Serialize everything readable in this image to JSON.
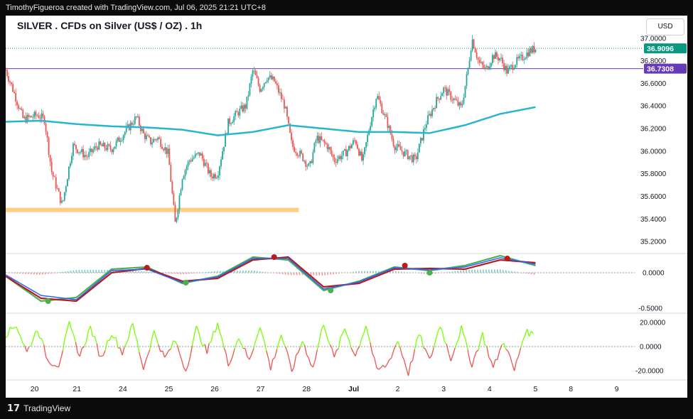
{
  "header": {
    "text": "TimothyFigueroa created with TradingView.com, Jul 06, 2025 21:21 UTC+8"
  },
  "footer": {
    "logo": "17",
    "brand": "TradingView"
  },
  "chart_title": "SILVER . CFDs on Silver (US$ / OZ) . 1h",
  "currency_button": "USD",
  "chart_data": [
    {
      "type": "candlestick",
      "title": "SILVER . CFDs on Silver (US$ / OZ) . 1h",
      "ylim": [
        35.1,
        37.2
      ],
      "y_ticks": [
        "37.0000",
        "36.8000",
        "36.6000",
        "36.4000",
        "36.2000",
        "36.0000",
        "35.8000",
        "35.6000",
        "35.4000",
        "35.2000"
      ],
      "y_tick_values": [
        37.0,
        36.8,
        36.6,
        36.4,
        36.2,
        36.0,
        35.8,
        35.6,
        35.4,
        35.2
      ],
      "x_ticks": [
        "20",
        "21",
        "24",
        "25",
        "26",
        "27",
        "28",
        "Jul",
        "2",
        "3",
        "4",
        "5",
        "8",
        "9"
      ],
      "price_label": "36.9096",
      "price_value": 36.9096,
      "horizontal_level_label": "36.7308",
      "horizontal_level_value": 36.7308,
      "support_zone": {
        "value": 35.48,
        "from_day": 0,
        "to_day": 8.3
      },
      "colors": {
        "up": "#26a69a",
        "down": "#ef5350",
        "ma": "#26b6d4",
        "price_tag": "#089981",
        "level_tag": "#673ab7",
        "support": "#ffcc80"
      },
      "ohlc_keypoints": [
        [
          0,
          36.72
        ],
        [
          0.2,
          36.55
        ],
        [
          0.5,
          36.28
        ],
        [
          0.9,
          36.32
        ],
        [
          1.1,
          36.28
        ],
        [
          1.3,
          35.82
        ],
        [
          1.6,
          35.52
        ],
        [
          1.9,
          36.05
        ],
        [
          2.3,
          35.95
        ],
        [
          2.6,
          36.05
        ],
        [
          3.0,
          36.02
        ],
        [
          3.4,
          36.18
        ],
        [
          3.7,
          36.3
        ],
        [
          3.9,
          36.15
        ],
        [
          4.1,
          36.08
        ],
        [
          4.3,
          36.12
        ],
        [
          4.6,
          35.98
        ],
        [
          4.8,
          35.35
        ],
        [
          5.0,
          35.78
        ],
        [
          5.2,
          35.92
        ],
        [
          5.5,
          35.98
        ],
        [
          5.8,
          35.78
        ],
        [
          6.0,
          35.8
        ],
        [
          6.3,
          36.25
        ],
        [
          6.6,
          36.35
        ],
        [
          6.8,
          36.4
        ],
        [
          7.0,
          36.72
        ],
        [
          7.2,
          36.55
        ],
        [
          7.4,
          36.66
        ],
        [
          7.6,
          36.62
        ],
        [
          7.9,
          36.4
        ],
        [
          8.1,
          36.05
        ],
        [
          8.4,
          35.95
        ],
        [
          8.6,
          35.85
        ],
        [
          8.8,
          36.12
        ],
        [
          9.1,
          36.05
        ],
        [
          9.3,
          35.92
        ],
        [
          9.6,
          35.98
        ],
        [
          9.9,
          36.1
        ],
        [
          10.1,
          35.9
        ],
        [
          10.3,
          36.22
        ],
        [
          10.5,
          36.5
        ],
        [
          10.8,
          36.25
        ],
        [
          11.0,
          36.05
        ],
        [
          11.3,
          35.98
        ],
        [
          11.6,
          35.92
        ],
        [
          11.9,
          36.25
        ],
        [
          12.2,
          36.45
        ],
        [
          12.4,
          36.55
        ],
        [
          12.7,
          36.45
        ],
        [
          12.9,
          36.38
        ],
        [
          13.1,
          36.75
        ],
        [
          13.2,
          37.0
        ],
        [
          13.4,
          36.78
        ],
        [
          13.6,
          36.72
        ],
        [
          13.8,
          36.85
        ],
        [
          14.0,
          36.82
        ],
        [
          14.2,
          36.7
        ],
        [
          14.4,
          36.78
        ],
        [
          14.6,
          36.82
        ],
        [
          14.8,
          36.88
        ],
        [
          15.0,
          36.91
        ]
      ],
      "ma_keypoints": [
        [
          0,
          36.26
        ],
        [
          1,
          36.27
        ],
        [
          2,
          36.24
        ],
        [
          3,
          36.22
        ],
        [
          4,
          36.21
        ],
        [
          5,
          36.19
        ],
        [
          6,
          36.14
        ],
        [
          7,
          36.17
        ],
        [
          8,
          36.23
        ],
        [
          9,
          36.2
        ],
        [
          10,
          36.17
        ],
        [
          11,
          36.17
        ],
        [
          12,
          36.16
        ],
        [
          13,
          36.23
        ],
        [
          14,
          36.33
        ],
        [
          15,
          36.39
        ]
      ]
    },
    {
      "type": "line",
      "name": "macd-panel",
      "ylim": [
        -0.56,
        0.26
      ],
      "y_ticks": [
        "0.0000",
        "-0.5000"
      ],
      "y_tick_values": [
        0.0,
        -0.5
      ],
      "series": [
        {
          "name": "fast",
          "color": "#4caf50",
          "keypoints": [
            [
              0,
              -0.05
            ],
            [
              1,
              -0.4
            ],
            [
              2,
              -0.35
            ],
            [
              3,
              0.05
            ],
            [
              4,
              0.08
            ],
            [
              5,
              -0.15
            ],
            [
              6,
              -0.05
            ],
            [
              7,
              0.22
            ],
            [
              8,
              0.18
            ],
            [
              9,
              -0.25
            ],
            [
              10,
              -0.12
            ],
            [
              11,
              0.08
            ],
            [
              12,
              0.03
            ],
            [
              13,
              0.1
            ],
            [
              14,
              0.24
            ],
            [
              15,
              0.1
            ]
          ]
        },
        {
          "name": "slow",
          "color": "#b71c1c",
          "keypoints": [
            [
              0,
              -0.05
            ],
            [
              1,
              -0.36
            ],
            [
              2,
              -0.4
            ],
            [
              3,
              0.0
            ],
            [
              4,
              0.06
            ],
            [
              5,
              -0.12
            ],
            [
              6,
              -0.08
            ],
            [
              7,
              0.18
            ],
            [
              8,
              0.22
            ],
            [
              9,
              -0.2
            ],
            [
              10,
              -0.15
            ],
            [
              11,
              0.05
            ],
            [
              12,
              0.06
            ],
            [
              13,
              0.05
            ],
            [
              14,
              0.18
            ],
            [
              15,
              0.14
            ]
          ]
        },
        {
          "name": "signal",
          "color": "#2962ff",
          "keypoints": [
            [
              0,
              -0.03
            ],
            [
              1,
              -0.32
            ],
            [
              2,
              -0.38
            ],
            [
              3,
              0.03
            ],
            [
              4,
              0.05
            ],
            [
              5,
              -0.14
            ],
            [
              6,
              -0.06
            ],
            [
              7,
              0.2
            ],
            [
              8,
              0.2
            ],
            [
              9,
              -0.23
            ],
            [
              10,
              -0.13
            ],
            [
              11,
              0.07
            ],
            [
              12,
              0.04
            ],
            [
              13,
              0.08
            ],
            [
              14,
              0.21
            ],
            [
              15,
              0.12
            ]
          ]
        }
      ],
      "cross_points": [
        {
          "x": 1.2,
          "y": -0.4,
          "color": "#4caf50"
        },
        {
          "x": 4.0,
          "y": 0.07,
          "color": "#b71c1c"
        },
        {
          "x": 5.1,
          "y": -0.14,
          "color": "#4caf50"
        },
        {
          "x": 7.6,
          "y": 0.22,
          "color": "#b71c1c"
        },
        {
          "x": 9.2,
          "y": -0.25,
          "color": "#4caf50"
        },
        {
          "x": 11.3,
          "y": 0.1,
          "color": "#b71c1c"
        },
        {
          "x": 12.0,
          "y": 0.0,
          "color": "#4caf50"
        },
        {
          "x": 14.2,
          "y": 0.2,
          "color": "#b71c1c"
        }
      ]
    },
    {
      "type": "line",
      "name": "oscillator-panel",
      "ylim": [
        -27,
        27
      ],
      "y_ticks": [
        "20.0000",
        "0.0000",
        "-20.0000"
      ],
      "y_tick_values": [
        20,
        0,
        -20
      ],
      "colors": {
        "up": "#76ff03",
        "down": "#ef5350"
      },
      "keypoints": [
        [
          0,
          10
        ],
        [
          0.3,
          18
        ],
        [
          0.6,
          -5
        ],
        [
          0.9,
          15
        ],
        [
          1.2,
          -12
        ],
        [
          1.5,
          -15
        ],
        [
          1.8,
          18
        ],
        [
          2.1,
          -8
        ],
        [
          2.4,
          16
        ],
        [
          2.7,
          -10
        ],
        [
          3.0,
          12
        ],
        [
          3.3,
          -5
        ],
        [
          3.6,
          18
        ],
        [
          3.9,
          -18
        ],
        [
          4.2,
          12
        ],
        [
          4.5,
          -10
        ],
        [
          4.8,
          5
        ],
        [
          5.1,
          -20
        ],
        [
          5.4,
          15
        ],
        [
          5.7,
          -5
        ],
        [
          6.0,
          20
        ],
        [
          6.3,
          -15
        ],
        [
          6.6,
          8
        ],
        [
          6.9,
          -12
        ],
        [
          7.2,
          18
        ],
        [
          7.5,
          -18
        ],
        [
          7.8,
          10
        ],
        [
          8.1,
          -20
        ],
        [
          8.4,
          5
        ],
        [
          8.7,
          -18
        ],
        [
          9.0,
          20
        ],
        [
          9.3,
          -10
        ],
        [
          9.6,
          15
        ],
        [
          9.9,
          -8
        ],
        [
          10.2,
          18
        ],
        [
          10.5,
          -20
        ],
        [
          10.8,
          -15
        ],
        [
          11.1,
          5
        ],
        [
          11.4,
          -22
        ],
        [
          11.7,
          10
        ],
        [
          12.0,
          -12
        ],
        [
          12.3,
          18
        ],
        [
          12.6,
          -10
        ],
        [
          12.9,
          15
        ],
        [
          13.2,
          -15
        ],
        [
          13.5,
          10
        ],
        [
          13.8,
          -18
        ],
        [
          14.1,
          5
        ],
        [
          14.4,
          -20
        ],
        [
          14.7,
          12
        ],
        [
          15.0,
          10
        ]
      ]
    }
  ]
}
